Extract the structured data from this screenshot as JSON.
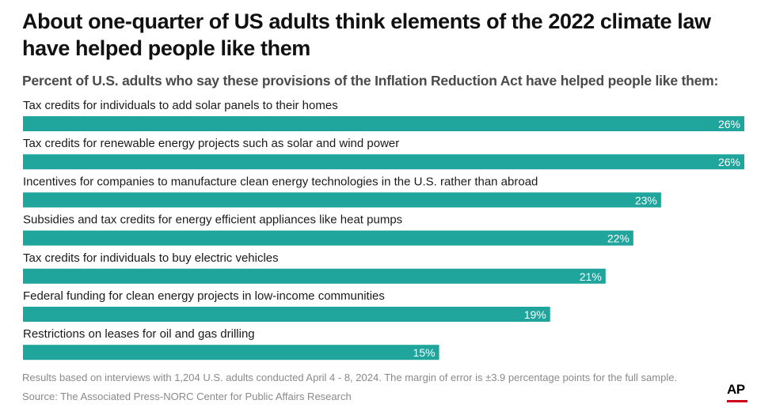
{
  "header": {
    "title": "About one-quarter of US adults think elements of the 2022 climate law have helped people like them",
    "subtitle": "Percent of U.S. adults who say these provisions of the Inflation Reduction Act have helped people like them:"
  },
  "footer": {
    "note": "Results based on interviews with 1,204 U.S. adults conducted April 4 - 8, 2024. The margin of error is ±3.9 percentage points for the full sample.",
    "source": "Source: The Associated Press-NORC Center for Public Affairs Research",
    "logo_text": "AP"
  },
  "colors": {
    "bar": "#20a59c",
    "logo_accent": "#d0021b"
  },
  "chart_data": {
    "type": "bar",
    "orientation": "horizontal",
    "categories": [
      "Tax credits for individuals to add solar panels to their homes",
      "Tax credits for renewable energy projects such as solar and wind power",
      "Incentives for companies to manufacture clean energy technologies in the U.S. rather than abroad",
      "Subsidies and tax credits for energy efficient appliances like heat pumps",
      "Tax credits for individuals to buy electric vehicles",
      "Federal funding for clean energy projects in low-income communities",
      "Restrictions on leases for oil and gas drilling"
    ],
    "values": [
      26,
      26,
      23,
      22,
      21,
      19,
      15
    ],
    "value_labels": [
      "26%",
      "26%",
      "23%",
      "22%",
      "21%",
      "19%",
      "15%"
    ],
    "unit": "%",
    "xlim": [
      0,
      26
    ],
    "grid": false,
    "legend": "none"
  }
}
